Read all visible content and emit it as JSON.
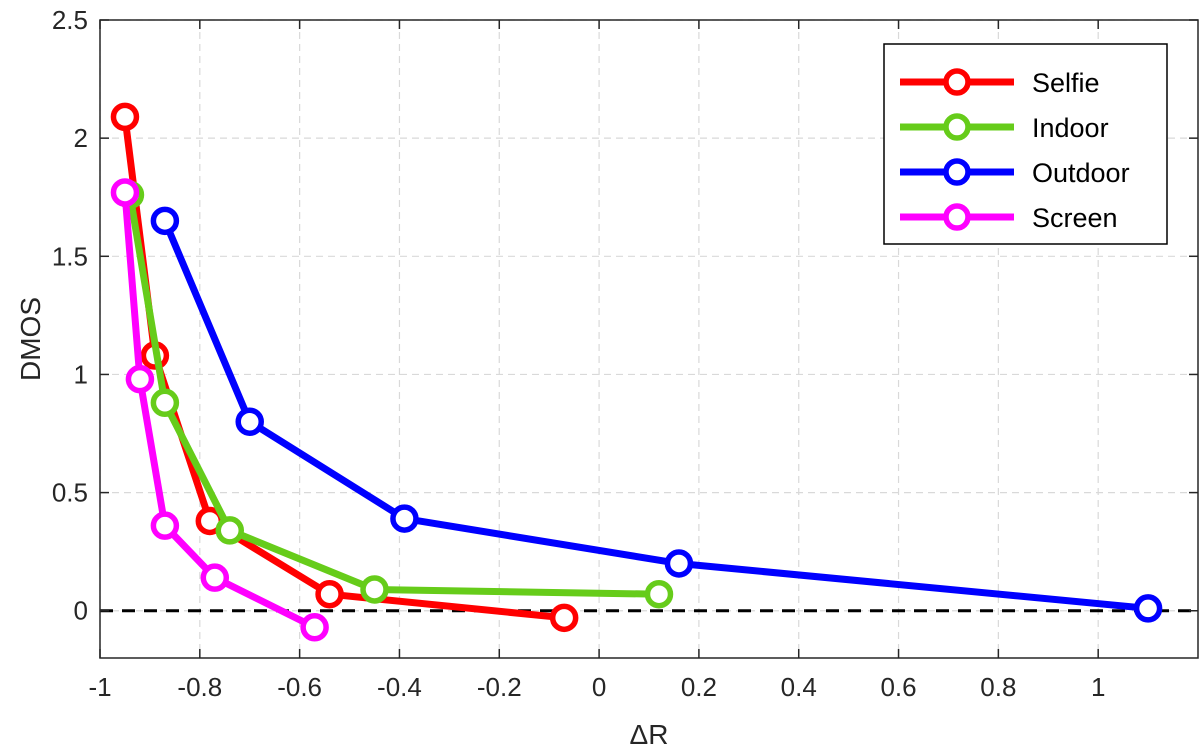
{
  "chart_data": {
    "type": "line",
    "title": "",
    "xlabel": "ΔR",
    "ylabel": "DMOS",
    "xlim": [
      -1,
      1.2
    ],
    "ylim": [
      -0.2,
      2.5
    ],
    "xticks": [
      -1,
      -0.8,
      -0.6,
      -0.4,
      -0.2,
      0,
      0.2,
      0.4,
      0.6,
      0.8,
      1
    ],
    "xtick_labels": [
      "-1",
      "-0.8",
      "-0.6",
      "-0.4",
      "-0.2",
      "0",
      "0.2",
      "0.4",
      "0.6",
      "0.8",
      "1"
    ],
    "yticks": [
      0,
      0.5,
      1,
      1.5,
      2,
      2.5
    ],
    "ytick_labels": [
      "0",
      "0.5",
      "1",
      "1.5",
      "2",
      "2.5"
    ],
    "grid": true,
    "legend_position": "top-right",
    "reference_line": {
      "y": 0,
      "style": "dashed",
      "color": "#000000"
    },
    "series": [
      {
        "name": "Selfie",
        "color": "#ff0000",
        "points": [
          [
            -0.95,
            2.09
          ],
          [
            -0.89,
            1.08
          ],
          [
            -0.78,
            0.38
          ],
          [
            -0.54,
            0.07
          ],
          [
            -0.07,
            -0.03
          ]
        ]
      },
      {
        "name": "Indoor",
        "color": "#66cc1a",
        "points": [
          [
            -0.94,
            1.76
          ],
          [
            -0.87,
            0.88
          ],
          [
            -0.74,
            0.34
          ],
          [
            -0.45,
            0.09
          ],
          [
            0.12,
            0.07
          ]
        ]
      },
      {
        "name": "Outdoor",
        "color": "#0000ff",
        "points": [
          [
            -0.87,
            1.65
          ],
          [
            -0.7,
            0.8
          ],
          [
            -0.39,
            0.39
          ],
          [
            0.16,
            0.2
          ],
          [
            1.1,
            0.01
          ]
        ]
      },
      {
        "name": "Screen",
        "color": "#ff00ff",
        "points": [
          [
            -0.95,
            1.77
          ],
          [
            -0.92,
            0.98
          ],
          [
            -0.87,
            0.36
          ],
          [
            -0.77,
            0.14
          ],
          [
            -0.57,
            -0.07
          ]
        ]
      }
    ]
  }
}
